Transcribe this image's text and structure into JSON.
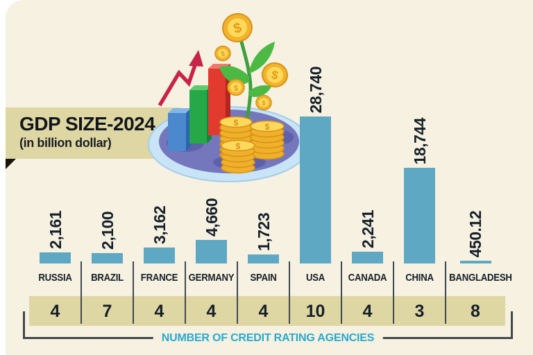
{
  "page": {
    "background": "#ffffff",
    "card_background": "#f6f1e1"
  },
  "header": {
    "title": "GDP SIZE-2024",
    "subtitle": "(in billion dollar)",
    "banner_color": "#ded7a4"
  },
  "chart_data": {
    "type": "bar",
    "title": "GDP SIZE-2024",
    "unit": "billion dollar",
    "categories": [
      "RUSSIA",
      "BRAZIL",
      "FRANCE",
      "GERMANY",
      "SPAIN",
      "USA",
      "CANADA",
      "CHINA",
      "BANGLADESH"
    ],
    "values": [
      2161,
      2100,
      3162,
      4660,
      1723,
      28740,
      2241,
      18744,
      450.12
    ],
    "value_labels": [
      "2,161",
      "2,100",
      "3,162",
      "4,660",
      "1,723",
      "28,740",
      "2,241",
      "18,744",
      "450.12"
    ],
    "bar_color": "#5fa8c4",
    "ylim": [
      0,
      28740
    ],
    "grid": false,
    "agencies": {
      "label": "NUMBER OF CREDIT RATING AGENCIES",
      "values": [
        4,
        7,
        4,
        4,
        4,
        10,
        4,
        3,
        8
      ]
    }
  },
  "footer_color": "#29a9cd",
  "illustration": {
    "dollar": "$"
  }
}
